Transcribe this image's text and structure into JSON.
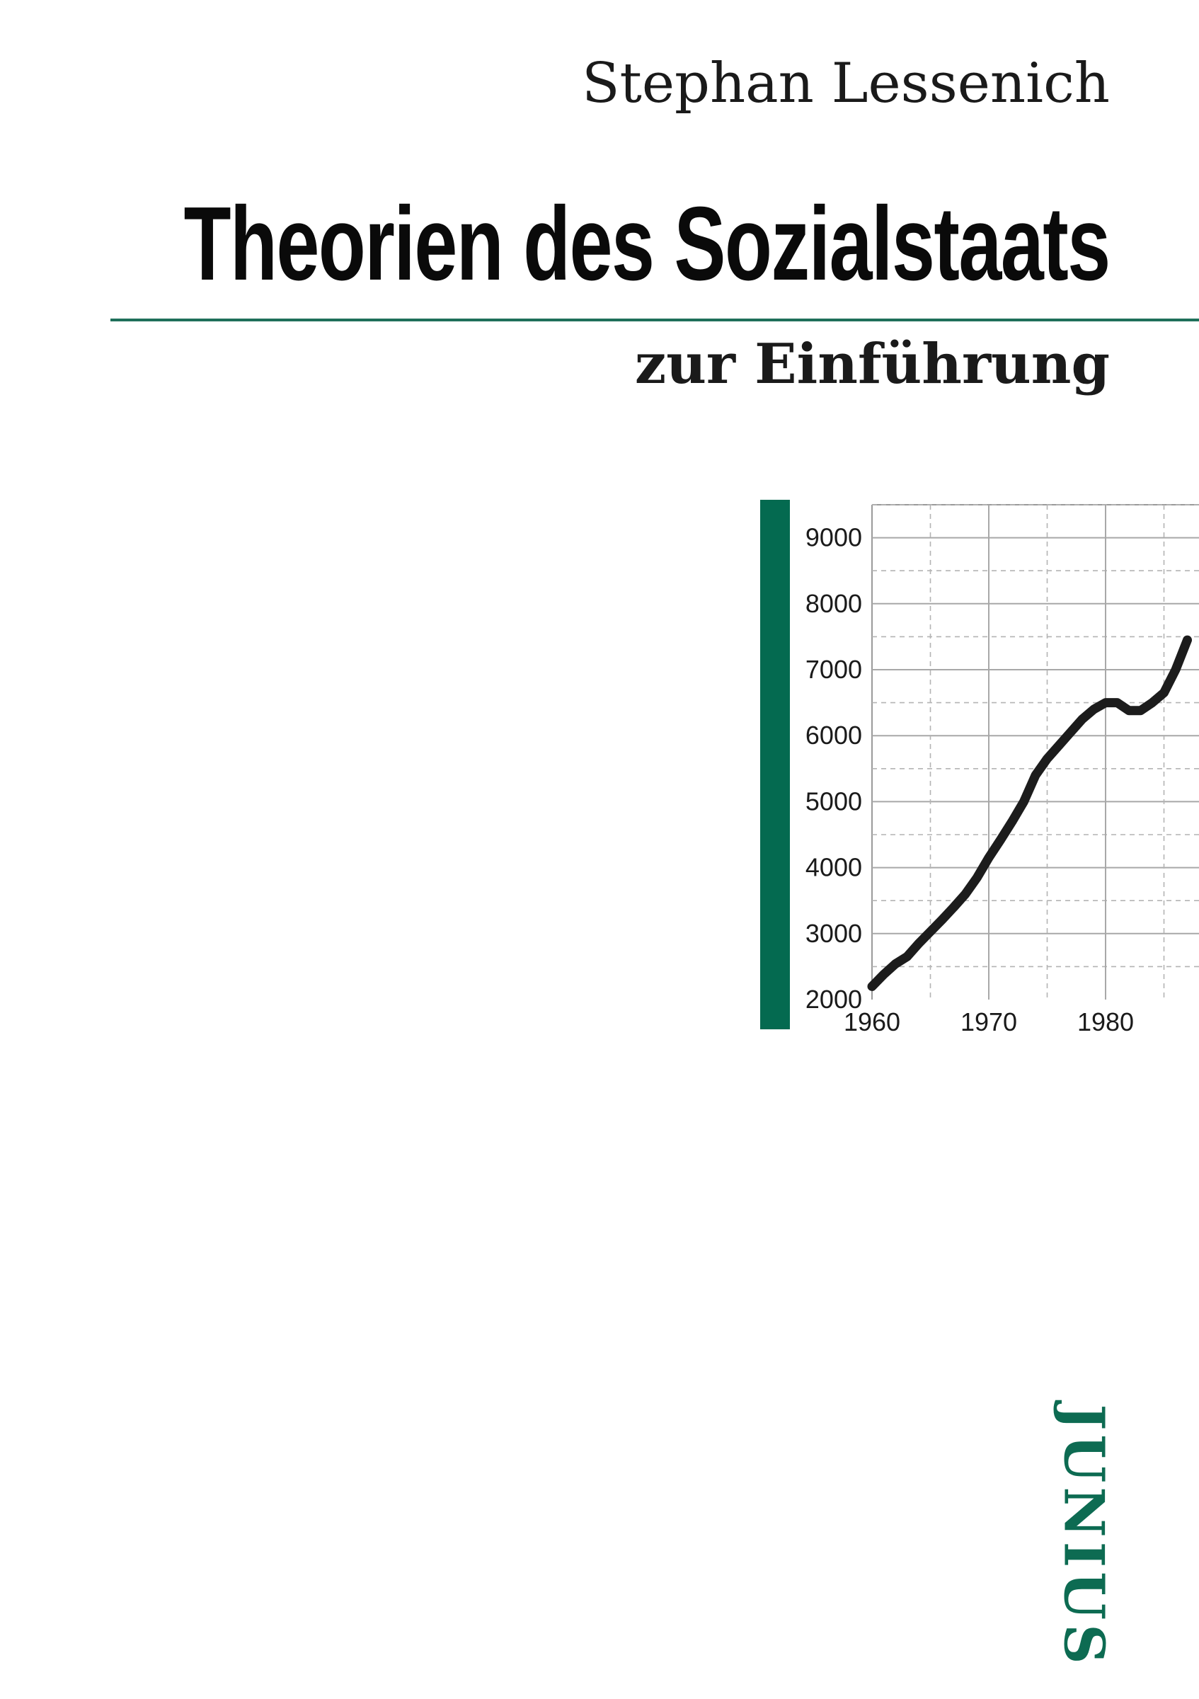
{
  "book": {
    "author": "Stephan Lessenich",
    "title": "Theorien des Sozialstaats",
    "subtitle": "zur Einführung",
    "publisher": "JUNIUS"
  },
  "colors": {
    "accent_green": "#046a50",
    "rule_green": "#1f6f5a",
    "line": "#1c1c1c"
  },
  "chart_data": {
    "type": "line",
    "title": "",
    "xlabel": "",
    "ylabel": "",
    "xlim": [
      1960,
      1988
    ],
    "ylim": [
      2000,
      9500
    ],
    "x_ticks": [
      1960,
      1970,
      1980
    ],
    "x_tick_labels": [
      "1960",
      "1970",
      "1980"
    ],
    "y_ticks": [
      2000,
      3000,
      4000,
      5000,
      6000,
      7000,
      8000,
      9000
    ],
    "y_tick_labels": [
      "2000",
      "3000",
      "4000",
      "5000",
      "6000",
      "7000",
      "8000",
      "9000"
    ],
    "grid": true,
    "series": [
      {
        "x": [
          1960,
          1961,
          1962,
          1963,
          1964,
          1965,
          1966,
          1967,
          1968,
          1969,
          1970,
          1971,
          1972,
          1973,
          1974,
          1975,
          1976,
          1977,
          1978,
          1979,
          1980,
          1981,
          1982,
          1983,
          1984,
          1985,
          1986,
          1987
        ],
        "y": [
          2200,
          2380,
          2540,
          2650,
          2850,
          3030,
          3210,
          3400,
          3600,
          3850,
          4150,
          4420,
          4700,
          5000,
          5400,
          5650,
          5850,
          6050,
          6250,
          6400,
          6500,
          6500,
          6380,
          6380,
          6500,
          6650,
          7000,
          7450
        ]
      }
    ]
  }
}
